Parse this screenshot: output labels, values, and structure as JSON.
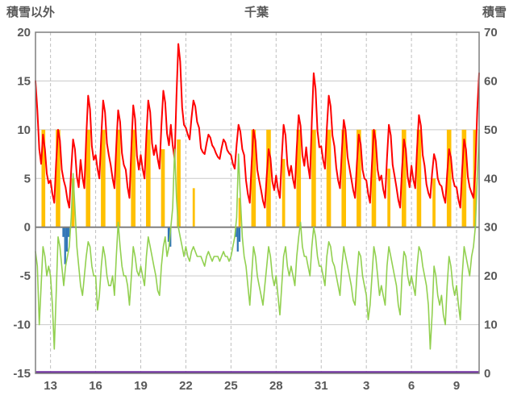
{
  "header": {
    "left_axis_title": "積雪以外",
    "title": "千葉",
    "right_axis_title": "積雪"
  },
  "colors": {
    "red_line": "#ff0000",
    "green_line": "#92d050",
    "orange_bars": "#ffc000",
    "blue_bars": "#2e74b5",
    "purple_line": "#7030a0",
    "grid_h": "#c9c9c9",
    "grid_v": "#bfbfbf",
    "zero_line": "#808080",
    "frame": "#7f7f7f",
    "text": "#595959"
  },
  "chart_data": {
    "type": "line",
    "title": "千葉",
    "left_axis": {
      "label": "積雪以外",
      "range": [
        -15,
        20
      ],
      "ticks": [
        20,
        15,
        10,
        5,
        0,
        -5,
        -10,
        -15
      ]
    },
    "right_axis": {
      "label": "積雪",
      "range": [
        0,
        70
      ],
      "ticks": [
        70,
        60,
        50,
        40,
        30,
        20,
        10,
        0
      ]
    },
    "x_axis": {
      "range": [
        12,
        41.5
      ],
      "ticks": [
        {
          "day": 13,
          "label": "13"
        },
        {
          "day": 16,
          "label": "16"
        },
        {
          "day": 19,
          "label": "19"
        },
        {
          "day": 22,
          "label": "22"
        },
        {
          "day": 25,
          "label": "25"
        },
        {
          "day": 28,
          "label": "28"
        },
        {
          "day": 31,
          "label": "31"
        },
        {
          "day": 34,
          "label": "3"
        },
        {
          "day": 37,
          "label": "6"
        },
        {
          "day": 40,
          "label": "9"
        }
      ],
      "grid_vertical": "dashed"
    },
    "series": [
      {
        "name": "temperature-red-line",
        "type": "line",
        "axis": "left",
        "color": "#ff0000",
        "width": 2,
        "x_start": 12,
        "x_step": 0.125,
        "values": [
          15.0,
          12.0,
          8.0,
          6.5,
          9.5,
          8.0,
          5.5,
          4.5,
          4.8,
          3.4,
          2.5,
          6.6,
          10.0,
          8.9,
          5.9,
          4.8,
          4.1,
          2.8,
          2.0,
          5.9,
          9.0,
          8.0,
          5.2,
          4.1,
          6.9,
          5.1,
          4.0,
          9.2,
          13.5,
          12.1,
          8.3,
          6.9,
          7.4,
          6.0,
          5.0,
          9.4,
          13.0,
          11.8,
          8.6,
          7.4,
          6.4,
          5.0,
          4.0,
          8.4,
          12.0,
          10.8,
          7.6,
          6.4,
          5.9,
          4.1,
          3.0,
          8.2,
          12.5,
          11.1,
          7.3,
          5.9,
          7.4,
          6.0,
          5.0,
          9.4,
          13.0,
          11.8,
          8.6,
          7.4,
          8.4,
          7.0,
          6.0,
          10.4,
          14.0,
          12.8,
          9.6,
          8.4,
          10.5,
          8.4,
          7.0,
          13.5,
          18.8,
          17.0,
          12.3,
          10.5,
          10.2,
          9.5,
          9.0,
          11.2,
          13.0,
          12.4,
          10.8,
          10.2,
          8.1,
          7.7,
          7.5,
          8.6,
          9.5,
          9.2,
          8.4,
          8.1,
          7.6,
          7.2,
          7.0,
          8.1,
          9.0,
          8.7,
          7.9,
          7.6,
          7.4,
          6.5,
          6.0,
          8.5,
          10.5,
          9.8,
          8.0,
          7.4,
          4.8,
          3.4,
          2.5,
          6.6,
          10.0,
          8.9,
          5.9,
          4.8,
          3.8,
          2.7,
          2.0,
          5.3,
          8.0,
          7.1,
          4.7,
          3.8,
          5.3,
          3.9,
          3.0,
          7.1,
          10.5,
          9.4,
          6.4,
          5.3,
          6.3,
          4.9,
          4.0,
          8.1,
          11.5,
          10.4,
          7.4,
          6.3,
          8.2,
          6.3,
          5.0,
          10.9,
          15.8,
          14.2,
          9.9,
          8.2,
          8.3,
          6.9,
          6.0,
          10.1,
          13.5,
          12.4,
          9.4,
          8.3,
          6.1,
          4.8,
          4.0,
          7.9,
          11.0,
          9.9,
          7.2,
          6.1,
          5.0,
          3.8,
          3.0,
          6.6,
          9.5,
          8.5,
          5.9,
          5.0,
          4.8,
          3.4,
          2.5,
          6.6,
          10.0,
          8.9,
          5.9,
          4.8,
          5.3,
          3.9,
          3.0,
          7.1,
          10.5,
          9.4,
          6.4,
          5.3,
          4.1,
          2.8,
          2.0,
          5.9,
          9.0,
          8.0,
          5.2,
          4.1,
          6.3,
          4.9,
          4.0,
          8.1,
          11.5,
          10.4,
          7.4,
          6.3,
          4.4,
          3.5,
          3.0,
          5.5,
          7.5,
          6.8,
          5.0,
          4.4,
          4.2,
          3.2,
          2.5,
          5.5,
          8.0,
          7.2,
          5.0,
          4.2,
          4.1,
          2.8,
          2.0,
          5.9,
          9.0,
          8.0,
          5.2,
          4.1,
          3.5,
          3.0,
          6.0,
          12.0,
          15.8
        ]
      },
      {
        "name": "green-line",
        "type": "line",
        "axis": "left",
        "color": "#92d050",
        "width": 1.6,
        "x_start": 12,
        "x_step": 0.125,
        "values": [
          -2.5,
          -4,
          -10,
          -6,
          -2,
          -3,
          -5,
          -4,
          -5,
          -8,
          -12.5,
          -7,
          -1,
          -2,
          -4,
          -6,
          -4,
          -3,
          -2,
          1,
          5.5,
          2,
          -2,
          -4,
          -6,
          -7,
          -5,
          -3,
          -1.5,
          -2,
          -4,
          -5,
          -5,
          -8.5,
          -7,
          -4,
          -2,
          -3,
          -5,
          -6,
          -6,
          -5,
          -7,
          -3,
          0.5,
          -2,
          -4,
          -5,
          -5,
          -6,
          -8,
          -5,
          -2,
          -3,
          -4.5,
          -5,
          -4,
          -5,
          -6,
          -3,
          -1,
          -2,
          -3,
          -4,
          -5,
          -6.5,
          -7,
          -4,
          -2,
          -1,
          -3,
          -2,
          0,
          2,
          8,
          3,
          0,
          -1,
          -2,
          -3,
          -2,
          -3,
          -3.5,
          -2.5,
          -2,
          -2.5,
          -3,
          -3,
          -3,
          -3.5,
          -4,
          -3,
          -2.5,
          -3,
          -3.5,
          -3,
          -3,
          -3,
          -3.5,
          -3,
          -2.5,
          -3,
          -3,
          -3.5,
          -3,
          -2,
          -1,
          1,
          7.5,
          3,
          -1,
          -3,
          -4,
          -6,
          -8,
          -5,
          -2,
          -3,
          -5,
          -6,
          -7,
          -8,
          -6,
          -4,
          -2,
          -3,
          -5,
          -6,
          -5,
          -7,
          -9,
          -6,
          -3,
          -2,
          -4,
          -5,
          -4,
          -5,
          -6,
          -3,
          -1,
          0.5,
          -2,
          -3,
          -3,
          -4,
          -5,
          -2,
          0,
          -1,
          -3,
          -4,
          -4,
          -5,
          -6,
          -3,
          -1.5,
          -2,
          -3.5,
          -4,
          -5,
          -6,
          -7,
          -4,
          -2,
          -3,
          -4,
          -5,
          -6,
          -7.5,
          -8,
          -5,
          -2.5,
          -3,
          -5,
          -6,
          -7,
          -9.5,
          -8,
          -5,
          -2,
          -3,
          -5,
          -7,
          -6,
          -7,
          -8,
          -4,
          -2,
          -3,
          -4,
          -5,
          -6,
          -8,
          -9,
          -5,
          -2.5,
          -3,
          -5,
          -6,
          -5,
          -6,
          -7,
          -4,
          -2,
          -2.5,
          -4,
          -5,
          -6,
          -8,
          -12.5,
          -9,
          -4,
          -5,
          -7,
          -8,
          -7,
          -9,
          -10,
          -6,
          -3,
          -4,
          -6,
          -7,
          -6,
          -8,
          -9.5,
          -5,
          -2,
          -3,
          -4,
          -5,
          -3,
          -2,
          0,
          5,
          10
        ]
      },
      {
        "name": "sunshine-bars",
        "type": "bar-segments",
        "axis": "left",
        "color": "#ffc000",
        "segments": [
          [
            12.4,
            12.65,
            10
          ],
          [
            13.35,
            13.65,
            10
          ],
          [
            14.4,
            14.6,
            5
          ],
          [
            15.35,
            15.65,
            10
          ],
          [
            16.35,
            16.65,
            10
          ],
          [
            17.35,
            17.65,
            10
          ],
          [
            18.35,
            18.65,
            10
          ],
          [
            19.35,
            19.65,
            10
          ],
          [
            20.35,
            20.6,
            8
          ],
          [
            21.4,
            21.65,
            9
          ],
          [
            22.45,
            22.6,
            4
          ],
          [
            25.5,
            25.65,
            3
          ],
          [
            26.35,
            26.65,
            10
          ],
          [
            27.35,
            27.65,
            10
          ],
          [
            28.4,
            28.6,
            7
          ],
          [
            29.35,
            29.65,
            10
          ],
          [
            30.35,
            30.65,
            10
          ],
          [
            31.35,
            31.65,
            10
          ],
          [
            32.35,
            32.65,
            10
          ],
          [
            33.35,
            33.65,
            10
          ],
          [
            34.35,
            34.65,
            10
          ],
          [
            35.4,
            35.6,
            6
          ],
          [
            36.35,
            36.65,
            10
          ],
          [
            37.35,
            37.65,
            10
          ],
          [
            38.4,
            38.6,
            5
          ],
          [
            39.35,
            39.65,
            10
          ],
          [
            40.35,
            40.65,
            10
          ],
          [
            41.1,
            41.3,
            10
          ]
        ]
      },
      {
        "name": "precipitation-bars",
        "type": "bars",
        "axis": "left",
        "color": "#2e74b5",
        "bar_width": 0.12,
        "bars": [
          [
            13.85,
            -1
          ],
          [
            13.97,
            -3.8
          ],
          [
            14.09,
            -2.5
          ],
          [
            14.21,
            -1
          ],
          [
            20.85,
            -1.5
          ],
          [
            20.97,
            -2
          ],
          [
            25.33,
            -1
          ],
          [
            25.45,
            -2.5
          ],
          [
            25.57,
            -1.5
          ]
        ]
      },
      {
        "name": "snow-depth-line",
        "type": "const-line",
        "axis": "right",
        "color": "#7030a0",
        "width": 2.5,
        "value": 0
      }
    ]
  }
}
